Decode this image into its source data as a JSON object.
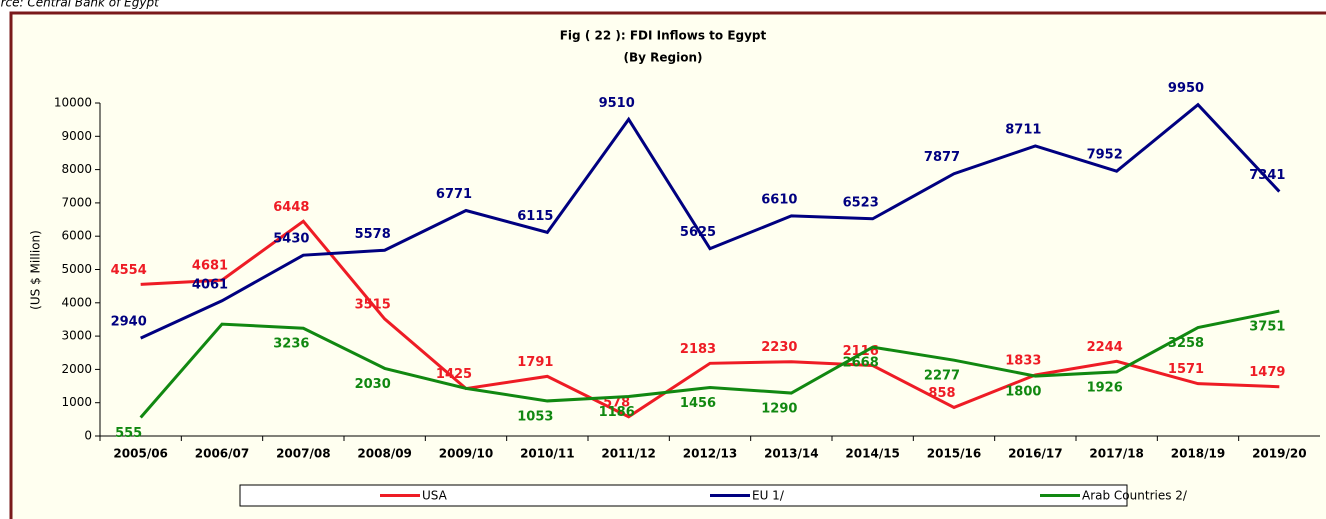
{
  "chart_data": {
    "type": "line",
    "source": "Source: Central Bank of Egypt",
    "title": "Fig ( 22 ): FDI Inflows to Egypt",
    "subtitle": "(By Region)",
    "y_label": "(US $ Million)",
    "categories": [
      "2005/06",
      "2006/07",
      "2007/08",
      "2008/09",
      "2009/10",
      "2010/11",
      "2011/12",
      "2012/13",
      "2013/14",
      "2014/15",
      "2015/16",
      "2016/17",
      "2017/18",
      "2018/19",
      "2019/20"
    ],
    "series": [
      {
        "name": "USA",
        "color": "#ee1c25",
        "values": [
          4554,
          4681,
          6448,
          3515,
          1425,
          1791,
          578,
          2183,
          2230,
          2116,
          858,
          1833,
          2244,
          1571,
          1479
        ],
        "value_labels": [
          "4554",
          "4681",
          "6448",
          "3515",
          "1425",
          "1791",
          "578",
          "2183",
          "2230",
          "2116",
          "858",
          "1833",
          "2244",
          "1571",
          "1479"
        ]
      },
      {
        "name": "EU 1/",
        "color": "#000080",
        "values": [
          2940,
          4061,
          5430,
          5578,
          6771,
          6115,
          9510,
          5625,
          6610,
          6523,
          7877,
          8711,
          7952,
          9950,
          7341
        ],
        "value_labels": [
          "2940",
          "4061",
          "5430",
          "5578",
          "6771",
          "6115",
          "9510",
          "5625",
          "6610",
          "6523",
          "7877",
          "8711",
          "7952",
          "9950",
          "7341"
        ]
      },
      {
        "name": "Arab Countries 2/",
        "color": "#118811",
        "values": [
          555,
          3360,
          3236,
          2030,
          1430,
          1053,
          1186,
          1456,
          1290,
          2668,
          2277,
          1800,
          1926,
          3258,
          3751
        ],
        "value_labels": [
          "555",
          null,
          "3236",
          "2030",
          null,
          "1053",
          "1186",
          "1456",
          "1290",
          "2668",
          "2277",
          "1800",
          "1926",
          "3258",
          "3751"
        ]
      }
    ],
    "ylim": [
      0,
      10000
    ],
    "yticks": [
      0,
      1000,
      2000,
      3000,
      4000,
      5000,
      6000,
      7000,
      8000,
      9000,
      10000
    ],
    "legend": "bottom"
  }
}
